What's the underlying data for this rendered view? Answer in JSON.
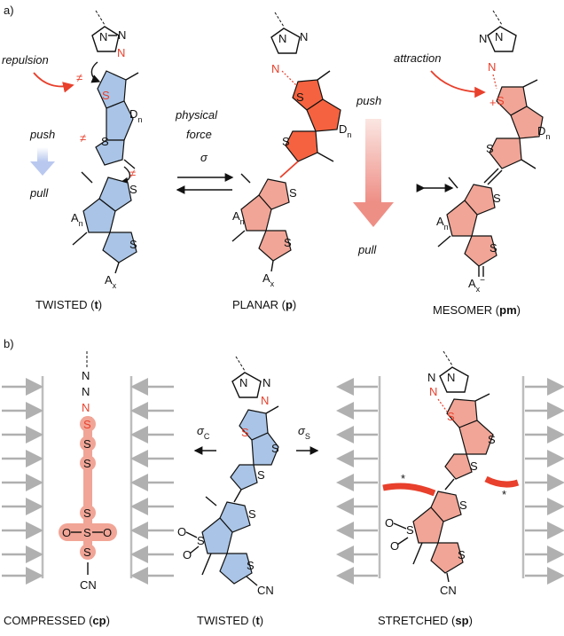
{
  "panel_a": {
    "label": "a)",
    "repulsion": "repulsion",
    "attraction": "attraction",
    "push_left": "push",
    "pull_left": "pull",
    "physical": "physical",
    "force": "force",
    "sigma": "σ",
    "push_right": "push",
    "pull_right": "pull",
    "twisted_caption": "TWISTED (",
    "twisted_bold": "t",
    "planar_caption": "PLANAR (",
    "planar_bold": "p",
    "mesomer_caption": "MESOMER (",
    "mesomer_bold": "pm",
    "close_paren": ")"
  },
  "panel_b": {
    "label": "b)",
    "sigma_c": "σ",
    "sigma_c_sub": "C",
    "sigma_s": "σ",
    "sigma_s_sub": "S",
    "compressed_caption": "COMPRESSED (",
    "compressed_bold": "cp",
    "twisted_caption": "TWISTED (",
    "twisted_bold": "t",
    "stretched_caption": "STRETCHED (",
    "stretched_bold": "sp",
    "close_paren": ")"
  },
  "atoms": {
    "N": "N",
    "S": "S",
    "O": "O",
    "CN": "CN",
    "Dn": "D",
    "n": "n",
    "An": "A",
    "Ax": "A",
    "x": "x",
    "minus": "−",
    "plus": "+",
    "star": "*"
  },
  "colors": {
    "red": "#e8402c",
    "blue": "#a9c4e6",
    "pink": "#f1a596",
    "orange": "#f5623f",
    "gray": "#bdbdbd"
  }
}
